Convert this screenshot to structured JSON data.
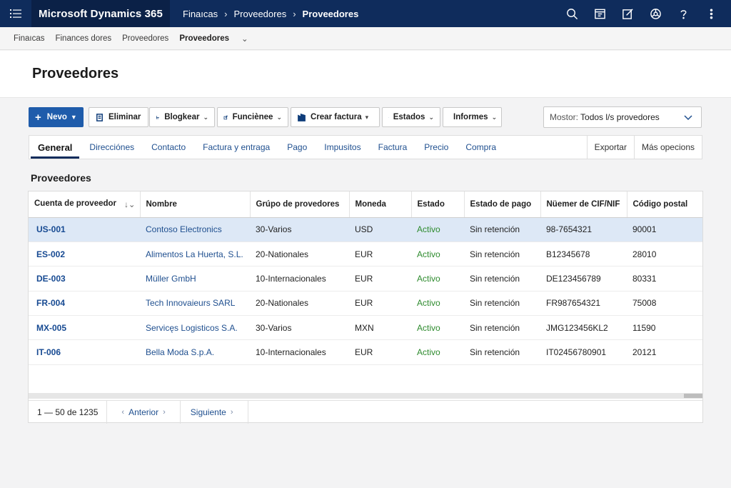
{
  "topbar": {
    "app_title": "Microsoft Dynamics 365",
    "crumbs": [
      "Finaıcas",
      "Proveedores",
      "Proveedores"
    ],
    "icons": [
      "search-icon",
      "workspace-icon",
      "edit-icon",
      "settings-icon",
      "help-icon",
      "more-icon"
    ]
  },
  "breadcrumb": {
    "items": [
      "Finaıcas",
      "Finances dores",
      "Proveedores",
      "Proveedores"
    ]
  },
  "page": {
    "title": "Proveedores"
  },
  "actions": {
    "new_label": "Nevo",
    "delete_label": "Eliminar",
    "block_label": "Blogkear",
    "functions_label": "Funciènee",
    "invoice_label": "Crear factura",
    "states_label": "Estados",
    "reports_label": "Informes"
  },
  "view_selector": {
    "label": "Mostor:",
    "value": "Todos l/s provedores"
  },
  "tabs": {
    "items": [
      "General",
      "Direcciónes",
      "Contacto",
      "Factura y entraga",
      "Pago",
      "Impusitos",
      "Factura",
      "Precio",
      "Compra"
    ],
    "active": "General",
    "export_label": "Exportar",
    "more_label": "Más opecions"
  },
  "section": {
    "title": "Proveedores"
  },
  "grid": {
    "columns": [
      "Cuenta de proveedor",
      "Nombre",
      "Grúpo de provedores",
      "Moneda",
      "Estado",
      "Estado de pago",
      "Nüemer de CIF/NIF",
      "Código postal"
    ],
    "sort_icon": "sort-icon",
    "rows": [
      [
        "US-001",
        "Contoso Electronics",
        "30-Varios",
        "USD",
        "Activo",
        "Sin retención",
        "98-7654321",
        "90001"
      ],
      [
        "ES-002",
        "Alimentos La Huerta, S.L.",
        "20-Nationales",
        "EUR",
        "Activo",
        "Sin retención",
        "B12345678",
        "28010"
      ],
      [
        "DE-003",
        "Müller GmbH",
        "10-Internacionales",
        "EUR",
        "Activo",
        "Sin retención",
        "DE123456789",
        "80331"
      ],
      [
        "FR-004",
        "Tech Innovaieurs SARL",
        "20-Nationales",
        "EUR",
        "Activo",
        "Sin retención",
        "FR987654321",
        "75008"
      ],
      [
        "MX-005",
        "Servicęs Logisticos S.A.",
        "30-Varios",
        "MXN",
        "Activo",
        "Sin retención",
        "JMG123456KL2",
        "11590"
      ],
      [
        "IT-006",
        "Bella Moda S.p.A.",
        "10-Internacionales",
        "EUR",
        "Activo",
        "Sin retención",
        "IT02456780901",
        "20121"
      ]
    ]
  },
  "pager": {
    "count": "1 — 50 de 1235",
    "prev_label": "Anterior",
    "next_label": "Siguiente"
  },
  "colors": {
    "topbar": "#0f2c5c",
    "accent": "#1f5cab",
    "active_status": "#2e8b2e",
    "selected_row": "#dde8f6"
  }
}
